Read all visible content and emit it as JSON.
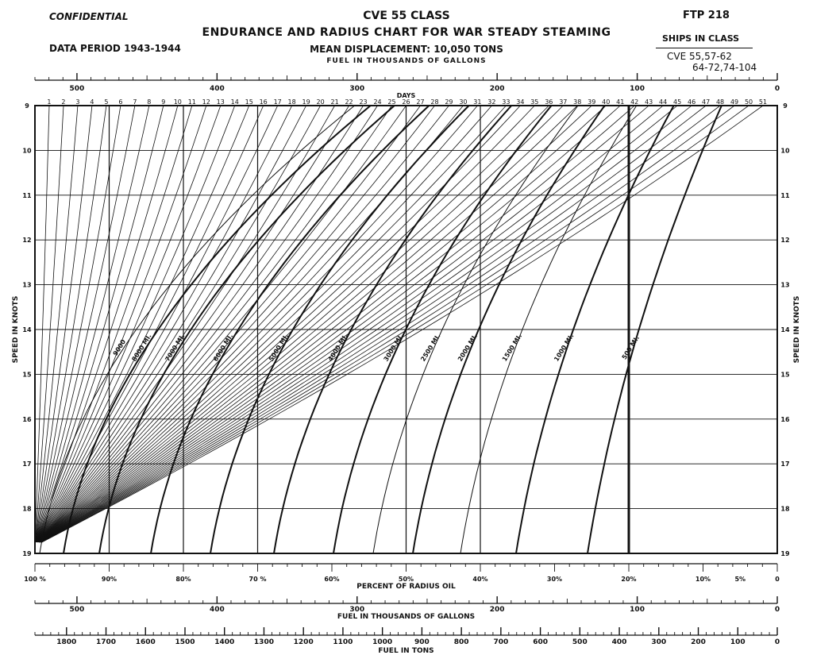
{
  "header": {
    "classification": "CONFIDENTIAL",
    "ftp": "FTP 218",
    "data_period": "DATA PERIOD 1943-1944",
    "title_line1": "CVE 55 CLASS",
    "title_line2": "ENDURANCE AND RADIUS CHART FOR WAR STEADY STEAMING",
    "title_line3": "MEAN DISPLACEMENT: 10,050 TONS",
    "top_fuel_label": "FUEL IN THOUSANDS OF GALLONS",
    "ships_in_class_label": "SHIPS IN CLASS",
    "ships_line1": "CVE 55,57-62",
    "ships_line2": "64-72,74-104"
  },
  "chart_data": {
    "type": "line",
    "title": "ENDURANCE AND RADIUS CHART FOR WAR STEADY STEAMING",
    "subtitle": "MEAN DISPLACEMENT: 10,050 TONS",
    "xlabel": "DAYS",
    "ylabel": "SPEED IN KNOTS",
    "y_range": [
      9,
      19
    ],
    "y_ticks": [
      9,
      10,
      11,
      12,
      13,
      14,
      15,
      16,
      17,
      18,
      19
    ],
    "x_top_days_range": [
      0,
      52
    ],
    "day_labels": [
      "1",
      "2",
      "3",
      "4",
      "5",
      "6",
      "7",
      "8",
      "9",
      "10",
      "11",
      "12",
      "13",
      "14",
      "15",
      "16",
      "17",
      "18",
      "19",
      "20",
      "21",
      "22",
      "23",
      "24",
      "25",
      "26",
      "27",
      "28",
      "29",
      "30",
      "31",
      "32",
      "33",
      "34",
      "35",
      "36",
      "37",
      "38",
      "39",
      "40",
      "41",
      "42",
      "43",
      "44",
      "45",
      "46",
      "47",
      "48",
      "49",
      "50",
      "51"
    ],
    "fuel_gallons_thousands": {
      "label": "FUEL IN THOUSANDS OF GALLONS",
      "range": [
        0,
        530
      ],
      "major": [
        500,
        400,
        300,
        200,
        100,
        0
      ],
      "minor_step": 10
    },
    "percent_radius_oil": {
      "label": "PERCENT OF RADIUS OIL",
      "labels": [
        "100 %",
        "90%",
        "80%",
        "70 %",
        "60%",
        "50%",
        "40%",
        "30%",
        "20%",
        "10%",
        "5%",
        "0"
      ],
      "values": [
        100,
        90,
        80,
        70,
        60,
        50,
        40,
        30,
        20,
        10,
        5,
        0
      ]
    },
    "fuel_tons": {
      "label": "FUEL IN TONS",
      "range": [
        0,
        1880
      ],
      "major": [
        1800,
        1700,
        1600,
        1500,
        1400,
        1300,
        1200,
        1100,
        1000,
        900,
        800,
        700,
        600,
        500,
        400,
        300,
        200,
        100,
        0
      ],
      "minor_step": 20
    },
    "radius_curves_nm": [
      {
        "label": "1000 MI.",
        "value": 1000
      },
      {
        "label": "1500 MI.",
        "value": 1500
      },
      {
        "label": "2000 MI.",
        "value": 2000
      },
      {
        "label": "2500 MI.",
        "value": 2500
      },
      {
        "label": "3000 MI.",
        "value": 3000
      },
      {
        "label": "4000 MI.",
        "value": 4000
      },
      {
        "label": "5000 MI.",
        "value": 5000
      },
      {
        "label": "500 MI.",
        "value": 500
      },
      {
        "label": "6000 MI.",
        "value": 6000
      },
      {
        "label": "7000 MI.",
        "value": 7000
      },
      {
        "label": "8000 MI.",
        "value": 8000
      },
      {
        "label": "9000",
        "value": 9000
      }
    ],
    "radius_curves_bold": [
      500,
      1000,
      2000,
      3000,
      4000,
      5000,
      6000,
      7000,
      8000
    ],
    "bold_percent_lines": [
      0,
      20,
      50,
      40,
      70,
      80,
      90
    ],
    "grid": true
  }
}
